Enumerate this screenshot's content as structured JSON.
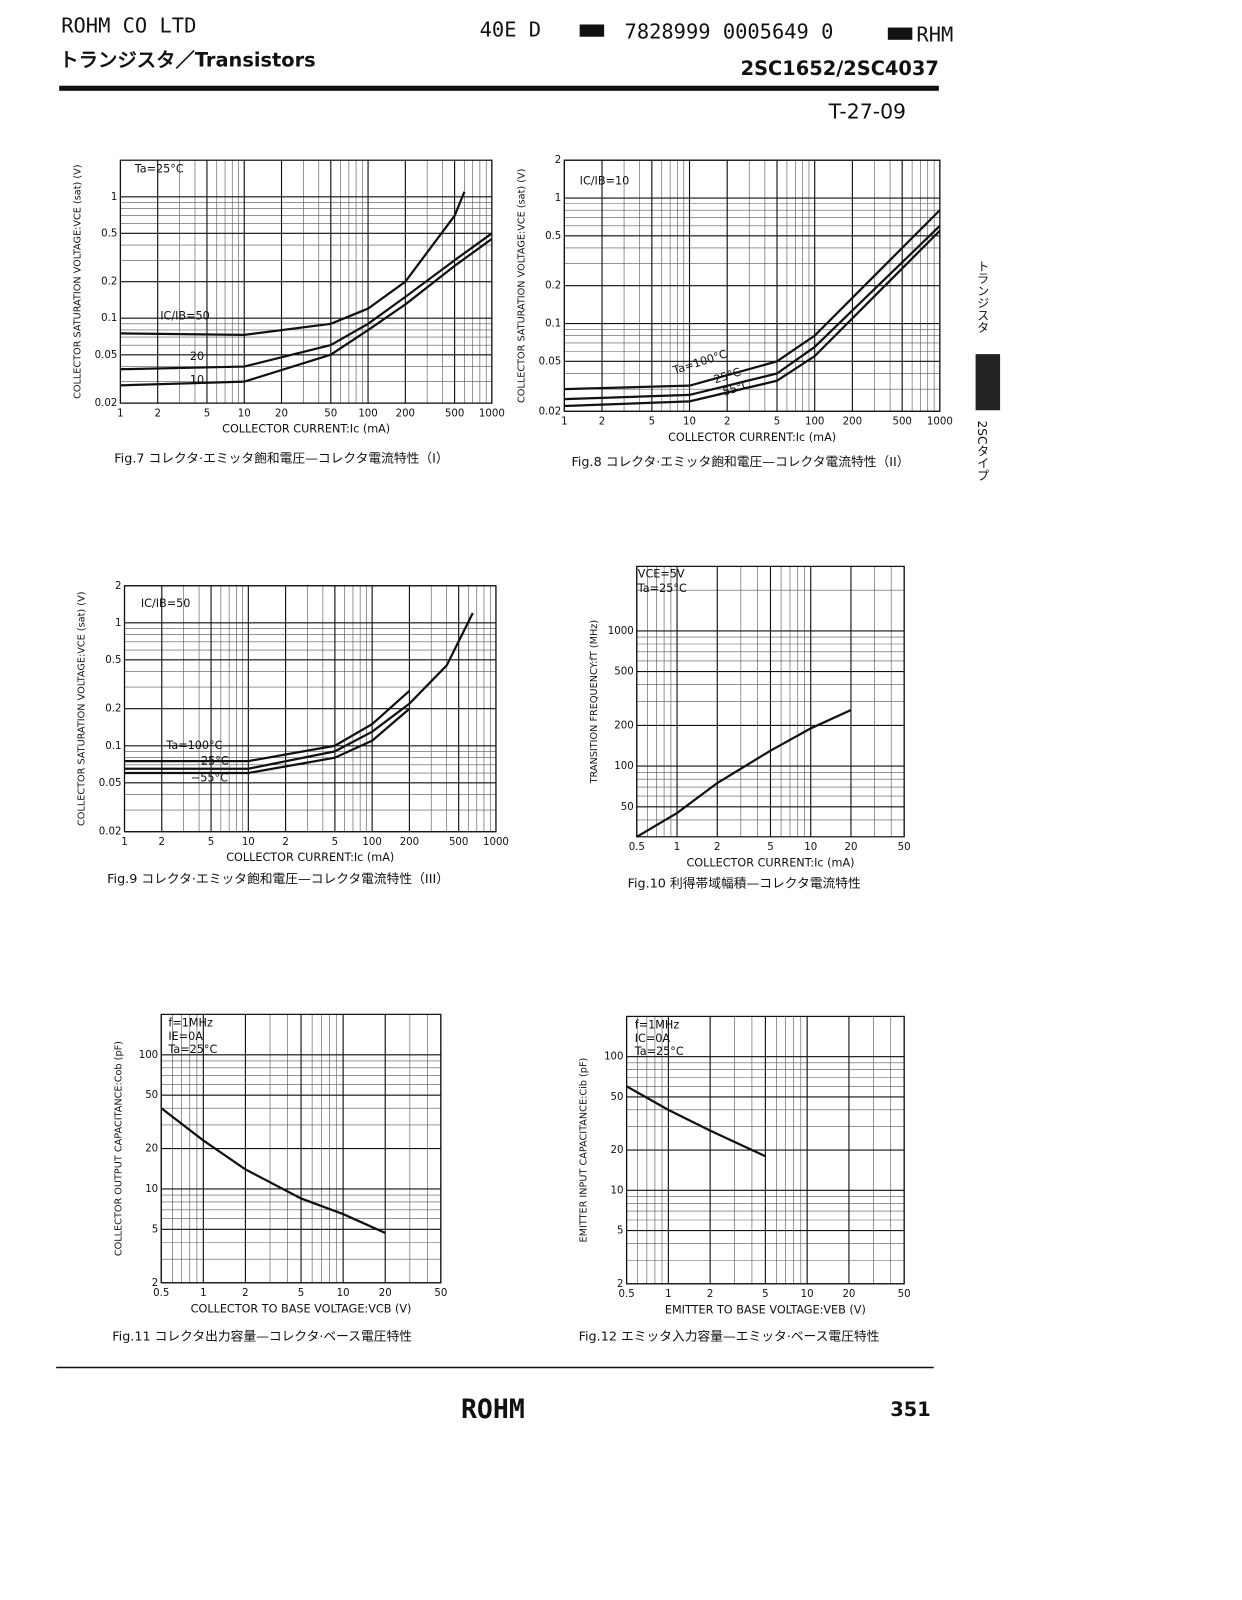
{
  "header": {
    "company": "ROHM CO LTD",
    "code1": "40E D",
    "code2": "7828999 0005649 0",
    "code3": "RHM",
    "category": "トランジスタ／Transistors",
    "part": "2SC1652/2SC4037",
    "ref": "T-27-09"
  },
  "side": {
    "tab1": "トランジスタ",
    "tab2": "2SCタイプ"
  },
  "footer": {
    "logo": "ROHM",
    "page": "351"
  },
  "chart_data": [
    {
      "type": "line",
      "log_x": true,
      "log_y": true,
      "grid": true,
      "caption": "Fig.7 コレクタ·エミッタ飽和電圧—コレクタ電流特性（I）",
      "x_label": "COLLECTOR CURRENT:Ic (mA)",
      "y_label": "COLLECTOR SATURATION VOLTAGE:VCE (sat) (V)",
      "xlim": [
        1,
        1000
      ],
      "ylim": [
        0.02,
        2
      ],
      "xticks": [
        1,
        2,
        5,
        10,
        20,
        50,
        100,
        200,
        500,
        1000
      ],
      "yticks": [
        0.02,
        0.05,
        0.1,
        0.2,
        0.5,
        1
      ],
      "annotations": [
        "Ta=25°C"
      ],
      "series": [
        {
          "name": "IC/IB=50",
          "color": "#111",
          "x": [
            1,
            10,
            50,
            100,
            200,
            500,
            600
          ],
          "values": [
            0.075,
            0.073,
            0.09,
            0.12,
            0.2,
            0.7,
            1.1
          ]
        },
        {
          "name": "20",
          "color": "#111",
          "x": [
            1,
            10,
            50,
            100,
            200,
            500,
            1000
          ],
          "values": [
            0.038,
            0.04,
            0.06,
            0.09,
            0.15,
            0.3,
            0.5
          ]
        },
        {
          "name": "10",
          "color": "#111",
          "x": [
            1,
            10,
            50,
            100,
            200,
            500,
            1000
          ],
          "values": [
            0.028,
            0.03,
            0.05,
            0.08,
            0.13,
            0.27,
            0.45
          ]
        }
      ]
    },
    {
      "type": "line",
      "log_x": true,
      "log_y": true,
      "grid": true,
      "caption": "Fig.8 コレクタ·エミッタ飽和電圧—コレクタ電流特性（II）",
      "x_label": "COLLECTOR CURRENT:Ic (mA)",
      "y_label": "COLLECTOR SATURATION VOLTAGE:VCE (sat) (V)",
      "xlim": [
        1,
        1000
      ],
      "ylim": [
        0.02,
        2
      ],
      "xticks": [
        1,
        2,
        5,
        10,
        {
          "value": 20,
          "label": "2"
        },
        {
          "value": 50,
          "label": "5"
        },
        100,
        200,
        500,
        1000
      ],
      "yticks": [
        0.02,
        0.05,
        0.1,
        0.2,
        0.5,
        1,
        2
      ],
      "annotations": [
        "IC/IB=10"
      ],
      "series": [
        {
          "name": "Ta=100°C",
          "color": "#111",
          "x": [
            1,
            10,
            50,
            100,
            1000
          ],
          "values": [
            0.03,
            0.032,
            0.05,
            0.08,
            0.8
          ]
        },
        {
          "name": "25°C",
          "color": "#111",
          "x": [
            1,
            10,
            50,
            100,
            1000
          ],
          "values": [
            0.025,
            0.027,
            0.04,
            0.065,
            0.6
          ]
        },
        {
          "name": "−55°C",
          "color": "#111",
          "x": [
            1,
            10,
            50,
            100,
            1000
          ],
          "values": [
            0.022,
            0.024,
            0.035,
            0.055,
            0.55
          ]
        }
      ]
    },
    {
      "type": "line",
      "log_x": true,
      "log_y": true,
      "grid": true,
      "caption": "Fig.9 コレクタ·エミッタ飽和電圧—コレクタ電流特性（III）",
      "x_label": "COLLECTOR CURRENT:Ic (mA)",
      "y_label": "COLLECTOR SATURATION VOLTAGE:VCE (sat) (V)",
      "xlim": [
        1,
        1000
      ],
      "ylim": [
        0.02,
        2
      ],
      "xticks": [
        1,
        2,
        5,
        10,
        {
          "value": 20,
          "label": "2"
        },
        {
          "value": 50,
          "label": "5"
        },
        100,
        200,
        500,
        1000
      ],
      "yticks": [
        0.02,
        0.05,
        0.1,
        0.2,
        0.5,
        1,
        2
      ],
      "annotations": [
        "IC/IB=50"
      ],
      "series": [
        {
          "name": "Ta=100°C",
          "color": "#111",
          "x": [
            1,
            10,
            50,
            100,
            200
          ],
          "values": [
            0.075,
            0.075,
            0.1,
            0.15,
            0.28
          ]
        },
        {
          "name": "25°C",
          "color": "#111",
          "x": [
            1,
            10,
            50,
            100,
            200,
            400,
            650
          ],
          "values": [
            0.065,
            0.065,
            0.09,
            0.13,
            0.22,
            0.45,
            1.2
          ]
        },
        {
          "name": "−55°C",
          "color": "#111",
          "x": [
            1,
            10,
            50,
            100,
            200
          ],
          "values": [
            0.06,
            0.06,
            0.08,
            0.11,
            0.2
          ]
        }
      ]
    },
    {
      "type": "line",
      "log_x": true,
      "log_y": true,
      "grid": true,
      "caption": "Fig.10 利得帯域幅積—コレクタ電流特性",
      "x_label": "COLLECTOR CURRENT:Ic (mA)",
      "y_label": "TRANSITION FREQUENCY:fT (MHz)",
      "xlim": [
        0.5,
        50
      ],
      "ylim": [
        30,
        3000
      ],
      "xticks": [
        0.5,
        1,
        2,
        5,
        10,
        20,
        50
      ],
      "yticks": [
        50,
        100,
        200,
        500,
        1000
      ],
      "annotations": [
        "VCE=5V",
        "Ta=25°C"
      ],
      "series": [
        {
          "color": "#111",
          "x": [
            0.5,
            1,
            2,
            5,
            10,
            20
          ],
          "values": [
            30,
            45,
            75,
            130,
            190,
            260
          ]
        }
      ]
    },
    {
      "type": "line",
      "log_x": true,
      "log_y": true,
      "grid": true,
      "caption": "Fig.11 コレクタ出力容量—コレクタ·ベース電圧特性",
      "x_label": "COLLECTOR TO BASE VOLTAGE:VCB (V)",
      "y_label": "COLLECTOR OUTPUT CAPACITANCE:Cob (pF)",
      "xlim": [
        0.5,
        50
      ],
      "ylim": [
        2,
        200
      ],
      "xticks": [
        0.5,
        1,
        2,
        5,
        10,
        20,
        50
      ],
      "yticks": [
        2,
        5,
        10,
        20,
        50,
        100
      ],
      "annotations": [
        "f=1MHz",
        "IE=0A",
        "Ta=25°C"
      ],
      "series": [
        {
          "color": "#111",
          "x": [
            0.5,
            1,
            2,
            5,
            10,
            20
          ],
          "values": [
            40,
            23,
            14,
            8.5,
            6.5,
            4.7
          ]
        }
      ]
    },
    {
      "type": "line",
      "log_x": true,
      "log_y": true,
      "grid": true,
      "caption": "Fig.12 エミッタ入力容量—エミッタ·ベース電圧特性",
      "x_label": "EMITTER TO BASE VOLTAGE:VEB (V)",
      "y_label": "EMITTER INPUT CAPACITANCE:Cib (pF)",
      "xlim": [
        0.5,
        50
      ],
      "ylim": [
        2,
        200
      ],
      "xticks": [
        0.5,
        1,
        2,
        5,
        10,
        20,
        50
      ],
      "yticks": [
        2,
        5,
        10,
        20,
        50,
        100
      ],
      "annotations": [
        "f=1MHz",
        "IC=0A",
        "Ta=25°C"
      ],
      "series": [
        {
          "color": "#111",
          "x": [
            0.5,
            1,
            2,
            5
          ],
          "values": [
            60,
            40,
            28,
            18
          ]
        }
      ]
    }
  ]
}
